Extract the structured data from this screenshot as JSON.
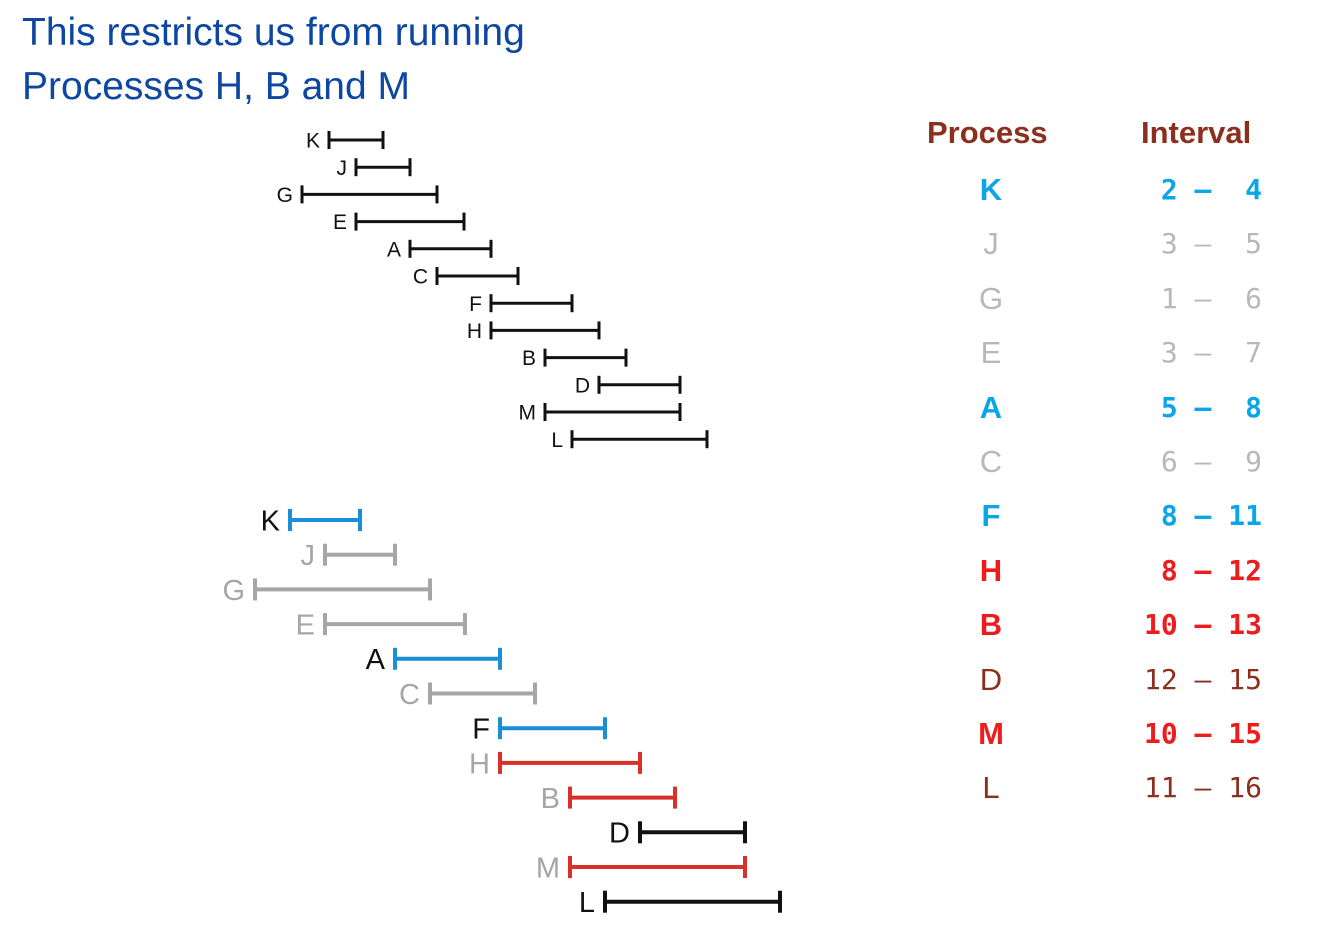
{
  "headline": {
    "line1": "This restricts us from running",
    "line2": "Processes H, B and M"
  },
  "colors": {
    "headline": "#0d47a1",
    "table_header": "#8b2f1e",
    "selected": "#0aa6e6",
    "rejected": "#b8b8b8",
    "conflict": "#ee1c1c",
    "pending": "#8b2f1e",
    "bar_selected": "#1a8fd6",
    "bar_rejected": "#a6a6a6",
    "bar_conflict": "#d9302a",
    "bar_default": "#111111",
    "label_default": "#111111"
  },
  "table": {
    "header_process": "Process",
    "header_interval": "Interval",
    "rows": [
      {
        "process": "K",
        "start": 2,
        "end": 4,
        "status": "selected"
      },
      {
        "process": "J",
        "start": 3,
        "end": 5,
        "status": "rejected"
      },
      {
        "process": "G",
        "start": 1,
        "end": 6,
        "status": "rejected"
      },
      {
        "process": "E",
        "start": 3,
        "end": 7,
        "status": "rejected"
      },
      {
        "process": "A",
        "start": 5,
        "end": 8,
        "status": "selected"
      },
      {
        "process": "C",
        "start": 6,
        "end": 9,
        "status": "rejected"
      },
      {
        "process": "F",
        "start": 8,
        "end": 11,
        "status": "selected"
      },
      {
        "process": "H",
        "start": 8,
        "end": 12,
        "status": "conflict"
      },
      {
        "process": "B",
        "start": 10,
        "end": 13,
        "status": "conflict"
      },
      {
        "process": "D",
        "start": 12,
        "end": 15,
        "status": "pending"
      },
      {
        "process": "M",
        "start": 10,
        "end": 15,
        "status": "conflict"
      },
      {
        "process": "L",
        "start": 11,
        "end": 16,
        "status": "pending"
      }
    ]
  }
}
